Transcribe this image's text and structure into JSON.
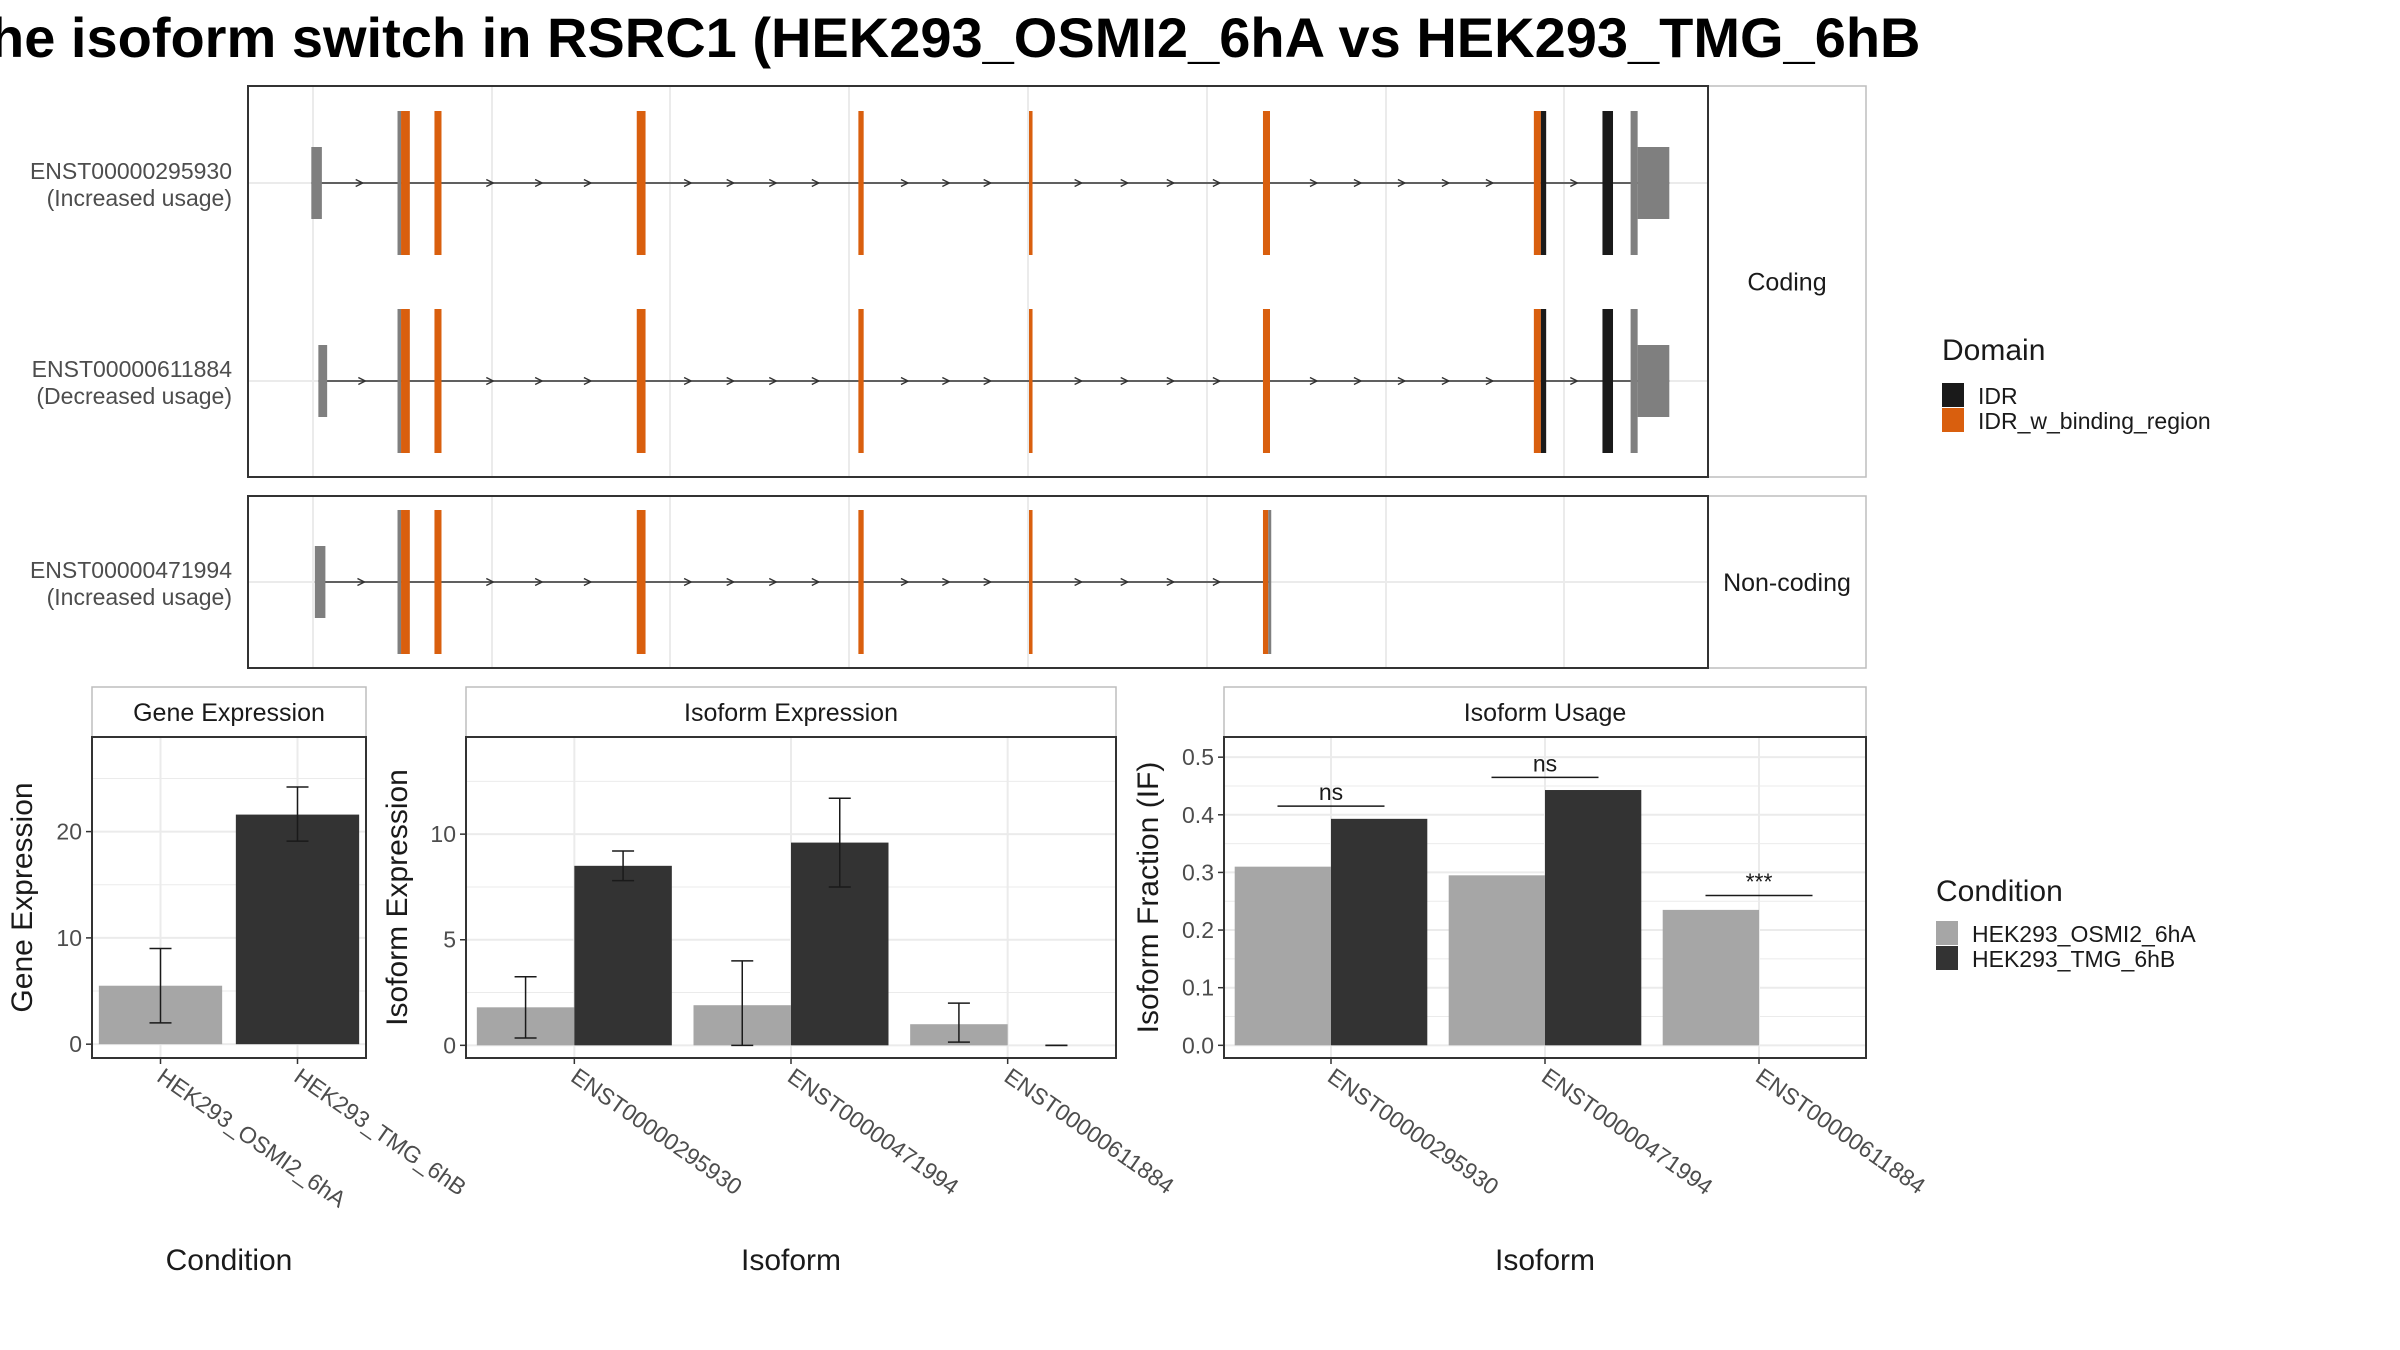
{
  "title": "he isoform switch in RSRC1 (HEK293_OSMI2_6hA vs HEK293_TMG_6hB",
  "colors": {
    "IDR": "#1a1a1a",
    "IDR_w_binding_region": "#d95f0e",
    "utr": "#7f7f7f",
    "HEK293_OSMI2_6hA": "#a6a6a6",
    "HEK293_TMG_6hB": "#333333"
  },
  "structure": {
    "coding_strip": "Coding",
    "noncoding_strip": "Non-coding",
    "transcripts": [
      {
        "id": "ENST00000295930",
        "label": "(Increased usage)",
        "panel": "Coding",
        "exons": [
          {
            "start": 0.6,
            "end": 1.2,
            "kind": "utr",
            "h": 0.4
          },
          {
            "start": 5.5,
            "end": 5.7,
            "kind": "utr",
            "h": 0.8
          },
          {
            "start": 5.7,
            "end": 6.2,
            "kind": "IDR_w_binding_region",
            "h": 0.8
          },
          {
            "start": 7.6,
            "end": 8.0,
            "kind": "IDR_w_binding_region",
            "h": 0.8
          },
          {
            "start": 19.1,
            "end": 19.6,
            "kind": "IDR_w_binding_region",
            "h": 0.8
          },
          {
            "start": 31.7,
            "end": 32.0,
            "kind": "IDR_w_binding_region",
            "h": 0.8
          },
          {
            "start": 41.4,
            "end": 41.6,
            "kind": "IDR_w_binding_region",
            "h": 0.8
          },
          {
            "start": 54.7,
            "end": 55.1,
            "kind": "IDR_w_binding_region",
            "h": 0.8
          },
          {
            "start": 70.1,
            "end": 70.5,
            "kind": "IDR_w_binding_region",
            "h": 0.8
          },
          {
            "start": 70.5,
            "end": 70.8,
            "kind": "IDR",
            "h": 0.8
          },
          {
            "start": 74.0,
            "end": 74.6,
            "kind": "IDR",
            "h": 0.8
          },
          {
            "start": 75.6,
            "end": 76.0,
            "kind": "utr",
            "h": 0.8
          },
          {
            "start": 76.0,
            "end": 77.8,
            "kind": "utr",
            "h": 0.4
          }
        ]
      },
      {
        "id": "ENST00000611884",
        "label": "(Decreased usage)",
        "panel": "Coding",
        "exons": [
          {
            "start": 1.0,
            "end": 1.5,
            "kind": "utr",
            "h": 0.4
          },
          {
            "start": 5.5,
            "end": 5.7,
            "kind": "utr",
            "h": 0.8
          },
          {
            "start": 5.7,
            "end": 6.2,
            "kind": "IDR_w_binding_region",
            "h": 0.8
          },
          {
            "start": 7.6,
            "end": 8.0,
            "kind": "IDR_w_binding_region",
            "h": 0.8
          },
          {
            "start": 19.1,
            "end": 19.6,
            "kind": "IDR_w_binding_region",
            "h": 0.8
          },
          {
            "start": 31.7,
            "end": 32.0,
            "kind": "IDR_w_binding_region",
            "h": 0.8
          },
          {
            "start": 41.4,
            "end": 41.6,
            "kind": "IDR_w_binding_region",
            "h": 0.8
          },
          {
            "start": 54.7,
            "end": 55.1,
            "kind": "IDR_w_binding_region",
            "h": 0.8
          },
          {
            "start": 70.1,
            "end": 70.5,
            "kind": "IDR_w_binding_region",
            "h": 0.8
          },
          {
            "start": 70.5,
            "end": 70.8,
            "kind": "IDR",
            "h": 0.8
          },
          {
            "start": 74.0,
            "end": 74.6,
            "kind": "IDR",
            "h": 0.8
          },
          {
            "start": 75.6,
            "end": 76.0,
            "kind": "utr",
            "h": 0.8
          },
          {
            "start": 76.0,
            "end": 77.8,
            "kind": "utr",
            "h": 0.4
          }
        ]
      },
      {
        "id": "ENST00000471994",
        "label": "(Increased usage)",
        "panel": "Non-coding",
        "exons": [
          {
            "start": 0.8,
            "end": 1.4,
            "kind": "utr",
            "h": 0.4
          },
          {
            "start": 5.5,
            "end": 5.7,
            "kind": "utr",
            "h": 0.8
          },
          {
            "start": 5.7,
            "end": 6.2,
            "kind": "IDR_w_binding_region",
            "h": 0.8
          },
          {
            "start": 7.6,
            "end": 8.0,
            "kind": "IDR_w_binding_region",
            "h": 0.8
          },
          {
            "start": 19.1,
            "end": 19.6,
            "kind": "IDR_w_binding_region",
            "h": 0.8
          },
          {
            "start": 31.7,
            "end": 32.0,
            "kind": "IDR_w_binding_region",
            "h": 0.8
          },
          {
            "start": 41.4,
            "end": 41.6,
            "kind": "IDR_w_binding_region",
            "h": 0.8
          },
          {
            "start": 54.7,
            "end": 55.0,
            "kind": "IDR_w_binding_region",
            "h": 0.8
          },
          {
            "start": 55.0,
            "end": 55.1,
            "kind": "utr",
            "h": 0.8
          }
        ]
      }
    ],
    "legend_title": "Domain",
    "legend_entries": [
      "IDR",
      "IDR_w_binding_region"
    ]
  },
  "chart_data": [
    {
      "type": "bar",
      "panel_title": "Gene Expression",
      "xlabel": "Condition",
      "ylabel": "Gene Expression",
      "categories": [
        "HEK293_OSMI2_6hA",
        "HEK293_TMG_6hB"
      ],
      "values": [
        5.5,
        21.6
      ],
      "error_low": [
        2.0,
        19.1
      ],
      "error_high": [
        9.0,
        24.2
      ],
      "ylim": [
        -1.3,
        28.9
      ],
      "yticks": [
        "0",
        "10",
        "20"
      ],
      "ytick_values": [
        0,
        10,
        20
      ],
      "grid": true
    },
    {
      "type": "bar",
      "panel_title": "Isoform Expression",
      "xlabel": "Isoform",
      "ylabel": "Isoform Expression",
      "categories": [
        "ENST00000295930",
        "ENST00000471994",
        "ENST00000611884"
      ],
      "series": [
        {
          "name": "HEK293_OSMI2_6hA",
          "values": [
            1.8,
            1.9,
            1.0
          ],
          "error_low": [
            0.35,
            0.0,
            0.15
          ],
          "error_high": [
            3.25,
            4.0,
            2.0
          ]
        },
        {
          "name": "HEK293_TMG_6hB",
          "values": [
            8.5,
            9.6,
            0.0
          ],
          "error_low": [
            7.8,
            7.5,
            0.0
          ],
          "error_high": [
            9.2,
            11.7,
            0.0
          ]
        }
      ],
      "ylim": [
        -0.6,
        14.6
      ],
      "yticks": [
        "0",
        "5",
        "10"
      ],
      "ytick_values": [
        0,
        5,
        10
      ],
      "grid": true
    },
    {
      "type": "bar",
      "panel_title": "Isoform Usage",
      "xlabel": "Isoform",
      "ylabel": "Isoform Fraction (IF)",
      "categories": [
        "ENST00000295930",
        "ENST00000471994",
        "ENST00000611884"
      ],
      "series": [
        {
          "name": "HEK293_OSMI2_6hA",
          "values": [
            0.31,
            0.295,
            0.235
          ]
        },
        {
          "name": "HEK293_TMG_6hB",
          "values": [
            0.393,
            0.443,
            0.0
          ]
        }
      ],
      "significance": [
        "ns",
        "ns",
        "***"
      ],
      "significance_y": [
        0.415,
        0.465,
        0.26
      ],
      "ylim": [
        -0.022,
        0.535
      ],
      "yticks": [
        "0.0",
        "0.1",
        "0.2",
        "0.3",
        "0.4",
        "0.5"
      ],
      "ytick_values": [
        0,
        0.1,
        0.2,
        0.3,
        0.4,
        0.5
      ],
      "grid": true
    }
  ],
  "condition_legend": {
    "title": "Condition",
    "entries": [
      "HEK293_OSMI2_6hA",
      "HEK293_TMG_6hB"
    ]
  }
}
